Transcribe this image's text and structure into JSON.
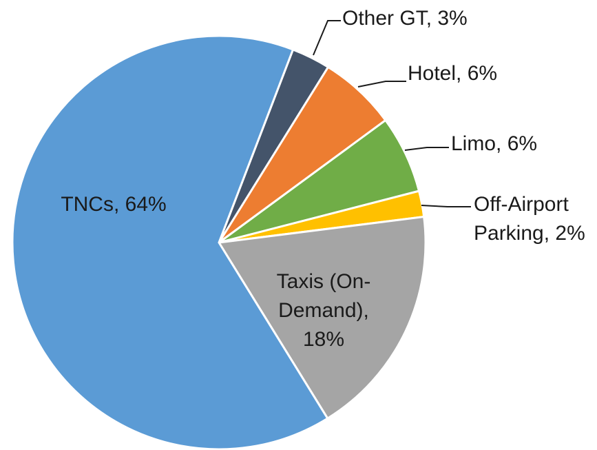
{
  "chart_data": {
    "type": "pie",
    "values": [
      3,
      6,
      6,
      2,
      18,
      64
    ],
    "value_labels": [
      [
        "Other GT, 3%"
      ],
      [
        "Hotel, 6%"
      ],
      [
        "Limo, 6%"
      ],
      [
        "Off-Airport",
        "Parking, 2%"
      ],
      [
        "Taxis (On-",
        "Demand),",
        "18%"
      ],
      [
        "TNCs, 64%"
      ]
    ],
    "colors": [
      "#44546a",
      "#ed7d31",
      "#70ad47",
      "#ffc000",
      "#a5a5a5",
      "#5b9bd5"
    ]
  }
}
